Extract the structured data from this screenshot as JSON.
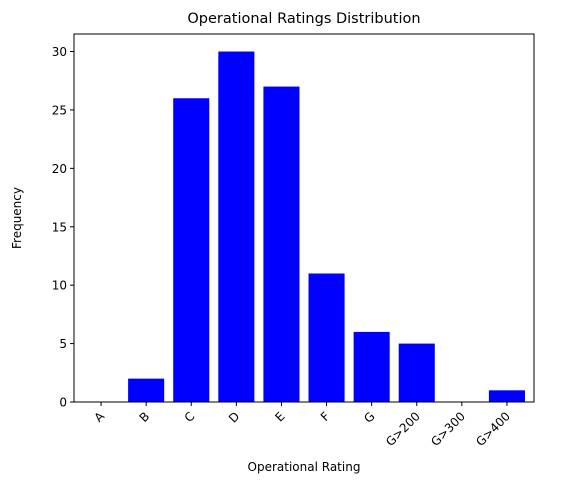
{
  "chart_data": {
    "type": "bar",
    "title": "Operational Ratings Distribution",
    "xlabel": "Operational Rating",
    "ylabel": "Frequency",
    "categories": [
      "A",
      "B",
      "C",
      "D",
      "E",
      "F",
      "G",
      "G>200",
      "G>300",
      "G>400"
    ],
    "values": [
      0,
      2,
      26,
      30,
      27,
      11,
      6,
      5,
      0,
      1
    ],
    "ylim": [
      0,
      31.5
    ],
    "yticks": [
      0,
      5,
      10,
      15,
      20,
      25,
      30
    ],
    "bar_color": "#0000ff",
    "grid": false,
    "legend": "none",
    "xtick_rotation": 45
  }
}
